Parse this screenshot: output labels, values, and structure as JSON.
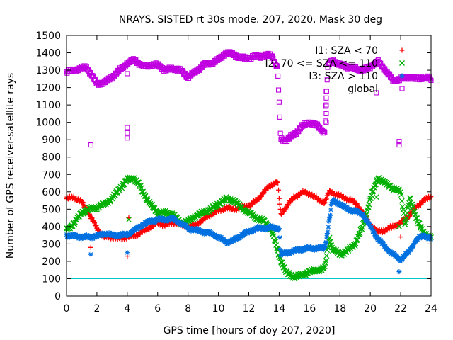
{
  "chart_data": {
    "type": "scatter",
    "title": "NRAYS. SISTED rt 30s mode. 207, 2020. Mask 30 deg",
    "xlabel": "GPS time [hours of doy 207, 2020]",
    "ylabel": "Number of GPS receiver-satellite rays",
    "xlim": [
      0,
      24
    ],
    "ylim": [
      0,
      1500
    ],
    "xticks": [
      0,
      2,
      4,
      6,
      8,
      10,
      12,
      14,
      16,
      18,
      20,
      22,
      24
    ],
    "yticks": [
      0,
      100,
      200,
      300,
      400,
      500,
      600,
      700,
      800,
      900,
      1000,
      1100,
      1200,
      1300,
      1400,
      1500
    ],
    "reference_line": {
      "y": 100,
      "color": "#00c8c8"
    },
    "legend_position": "top-right",
    "series": [
      {
        "name": "I1: SZA < 70",
        "color": "#ff0000",
        "marker": "+",
        "points": [
          [
            0,
            560
          ],
          [
            0.5,
            570
          ],
          [
            1,
            540
          ],
          [
            1.5,
            470
          ],
          [
            2,
            390
          ],
          [
            2.5,
            340
          ],
          [
            3,
            340
          ],
          [
            3.5,
            330
          ],
          [
            4,
            340
          ],
          [
            4.5,
            350
          ],
          [
            5,
            370
          ],
          [
            5.5,
            395
          ],
          [
            6,
            420
          ],
          [
            6.5,
            410
          ],
          [
            7,
            425
          ],
          [
            7.5,
            410
          ],
          [
            8,
            400
          ],
          [
            8.5,
            410
          ],
          [
            9,
            440
          ],
          [
            9.5,
            470
          ],
          [
            10,
            490
          ],
          [
            10.5,
            510
          ],
          [
            11,
            500
          ],
          [
            11.5,
            510
          ],
          [
            12,
            520
          ],
          [
            12.5,
            550
          ],
          [
            13,
            600
          ],
          [
            13.5,
            640
          ],
          [
            13.9,
            660
          ],
          [
            14.1,
            470
          ],
          [
            14.5,
            520
          ],
          [
            15,
            570
          ],
          [
            15.5,
            595
          ],
          [
            16,
            590
          ],
          [
            16.5,
            560
          ],
          [
            17,
            540
          ],
          [
            17.3,
            600
          ],
          [
            17.6,
            590
          ],
          [
            18,
            575
          ],
          [
            18.5,
            560
          ],
          [
            19,
            540
          ],
          [
            19.5,
            480
          ],
          [
            20,
            410
          ],
          [
            20.5,
            370
          ],
          [
            21,
            380
          ],
          [
            21.5,
            400
          ],
          [
            22,
            420
          ],
          [
            22.5,
            460
          ],
          [
            23,
            510
          ],
          [
            23.5,
            550
          ],
          [
            24,
            570
          ]
        ],
        "outliers": [
          [
            1.6,
            280
          ],
          [
            4.0,
            230
          ],
          [
            4.1,
            450
          ],
          [
            22.0,
            340
          ]
        ]
      },
      {
        "name": "I2: 70 <= SZA <= 110",
        "color": "#00b000",
        "marker": "x",
        "points": [
          [
            0,
            380
          ],
          [
            0.5,
            420
          ],
          [
            1,
            480
          ],
          [
            1.5,
            500
          ],
          [
            2,
            510
          ],
          [
            2.5,
            530
          ],
          [
            3,
            560
          ],
          [
            3.5,
            620
          ],
          [
            4,
            670
          ],
          [
            4.4,
            680
          ],
          [
            4.8,
            640
          ],
          [
            5,
            600
          ],
          [
            5.5,
            530
          ],
          [
            6,
            480
          ],
          [
            6.5,
            480
          ],
          [
            7,
            470
          ],
          [
            7.5,
            420
          ],
          [
            8,
            430
          ],
          [
            8.5,
            460
          ],
          [
            9,
            480
          ],
          [
            9.5,
            500
          ],
          [
            10,
            530
          ],
          [
            10.5,
            560
          ],
          [
            11,
            550
          ],
          [
            11.5,
            510
          ],
          [
            12,
            480
          ],
          [
            12.5,
            450
          ],
          [
            13,
            430
          ],
          [
            13.5,
            380
          ],
          [
            14,
            230
          ],
          [
            14.5,
            130
          ],
          [
            15,
            110
          ],
          [
            15.5,
            120
          ],
          [
            16,
            140
          ],
          [
            16.5,
            150
          ],
          [
            17,
            160
          ],
          [
            17.3,
            340
          ],
          [
            17.5,
            270
          ],
          [
            18,
            240
          ],
          [
            18.5,
            260
          ],
          [
            19,
            300
          ],
          [
            19.5,
            400
          ],
          [
            20,
            560
          ],
          [
            20.5,
            680
          ],
          [
            21,
            650
          ],
          [
            21.5,
            620
          ],
          [
            22,
            600
          ],
          [
            22.3,
            410
          ],
          [
            22.6,
            560
          ],
          [
            23,
            460
          ],
          [
            23.5,
            360
          ],
          [
            24,
            340
          ]
        ],
        "outliers": [
          [
            4.1,
            440
          ],
          [
            20.4,
            570
          ],
          [
            21.9,
            400
          ]
        ]
      },
      {
        "name": "I3: SZA > 110",
        "color": "#0070e0",
        "marker": "*",
        "points": [
          [
            0,
            350
          ],
          [
            0.5,
            345
          ],
          [
            1,
            340
          ],
          [
            1.5,
            340
          ],
          [
            2,
            345
          ],
          [
            2.5,
            360
          ],
          [
            3,
            350
          ],
          [
            3.5,
            350
          ],
          [
            4,
            355
          ],
          [
            4.5,
            380
          ],
          [
            5,
            410
          ],
          [
            5.5,
            430
          ],
          [
            6,
            440
          ],
          [
            6.5,
            440
          ],
          [
            7,
            445
          ],
          [
            7.5,
            420
          ],
          [
            8,
            390
          ],
          [
            8.5,
            380
          ],
          [
            9,
            370
          ],
          [
            9.5,
            360
          ],
          [
            10,
            340
          ],
          [
            10.5,
            310
          ],
          [
            11,
            320
          ],
          [
            11.5,
            350
          ],
          [
            12,
            370
          ],
          [
            12.5,
            390
          ],
          [
            13,
            390
          ],
          [
            13.5,
            395
          ],
          [
            14,
            390
          ],
          [
            14.1,
            240
          ],
          [
            15,
            260
          ],
          [
            15.5,
            270
          ],
          [
            16,
            275
          ],
          [
            16.5,
            275
          ],
          [
            17,
            275
          ],
          [
            17.2,
            380
          ],
          [
            17.5,
            550
          ],
          [
            18,
            530
          ],
          [
            18.5,
            500
          ],
          [
            19,
            490
          ],
          [
            19.5,
            470
          ],
          [
            20,
            400
          ],
          [
            20.5,
            330
          ],
          [
            21,
            280
          ],
          [
            21.5,
            240
          ],
          [
            22,
            210
          ],
          [
            22.5,
            250
          ],
          [
            23,
            320
          ],
          [
            23.5,
            350
          ],
          [
            24,
            330
          ]
        ],
        "outliers": [
          [
            1.6,
            240
          ],
          [
            4.0,
            250
          ],
          [
            21.9,
            140
          ],
          [
            17.1,
            310
          ]
        ]
      },
      {
        "name": "global",
        "color": "#c000e0",
        "marker": "square",
        "points": [
          [
            0,
            1290
          ],
          [
            0.5,
            1300
          ],
          [
            1,
            1310
          ],
          [
            1.3,
            1320
          ],
          [
            1.6,
            1280
          ],
          [
            2,
            1220
          ],
          [
            2.5,
            1230
          ],
          [
            3,
            1260
          ],
          [
            3.5,
            1300
          ],
          [
            4,
            1340
          ],
          [
            4.5,
            1360
          ],
          [
            5,
            1320
          ],
          [
            5.5,
            1330
          ],
          [
            6,
            1330
          ],
          [
            6.5,
            1300
          ],
          [
            7,
            1310
          ],
          [
            7.5,
            1300
          ],
          [
            8,
            1260
          ],
          [
            8.5,
            1290
          ],
          [
            9,
            1330
          ],
          [
            9.5,
            1340
          ],
          [
            10,
            1360
          ],
          [
            10.5,
            1400
          ],
          [
            11,
            1390
          ],
          [
            11.5,
            1370
          ],
          [
            12,
            1370
          ],
          [
            12.5,
            1380
          ],
          [
            13,
            1380
          ],
          [
            13.5,
            1390
          ],
          [
            13.9,
            1310
          ],
          [
            14.1,
            900
          ],
          [
            14.5,
            900
          ],
          [
            15,
            930
          ],
          [
            15.5,
            980
          ],
          [
            16,
            1000
          ],
          [
            16.5,
            980
          ],
          [
            17,
            940
          ],
          [
            17.2,
            1320
          ],
          [
            17.5,
            1360
          ],
          [
            18,
            1330
          ],
          [
            18.5,
            1320
          ],
          [
            19,
            1310
          ],
          [
            19.5,
            1300
          ],
          [
            20,
            1320
          ],
          [
            20.5,
            1350
          ],
          [
            21,
            1300
          ],
          [
            21.5,
            1240
          ],
          [
            22,
            1250
          ],
          [
            22.5,
            1260
          ],
          [
            23,
            1250
          ],
          [
            23.5,
            1260
          ],
          [
            24,
            1250
          ]
        ],
        "outliers": [
          [
            1.6,
            870
          ],
          [
            4.0,
            910
          ],
          [
            4.0,
            940
          ],
          [
            4.0,
            970
          ],
          [
            4.0,
            1280
          ],
          [
            20.4,
            1170
          ],
          [
            21.9,
            870
          ],
          [
            21.9,
            890
          ],
          [
            17.1,
            1000
          ],
          [
            17.1,
            1050
          ],
          [
            17.1,
            1100
          ],
          [
            17.1,
            1140
          ],
          [
            17.1,
            1180
          ]
        ]
      }
    ]
  }
}
